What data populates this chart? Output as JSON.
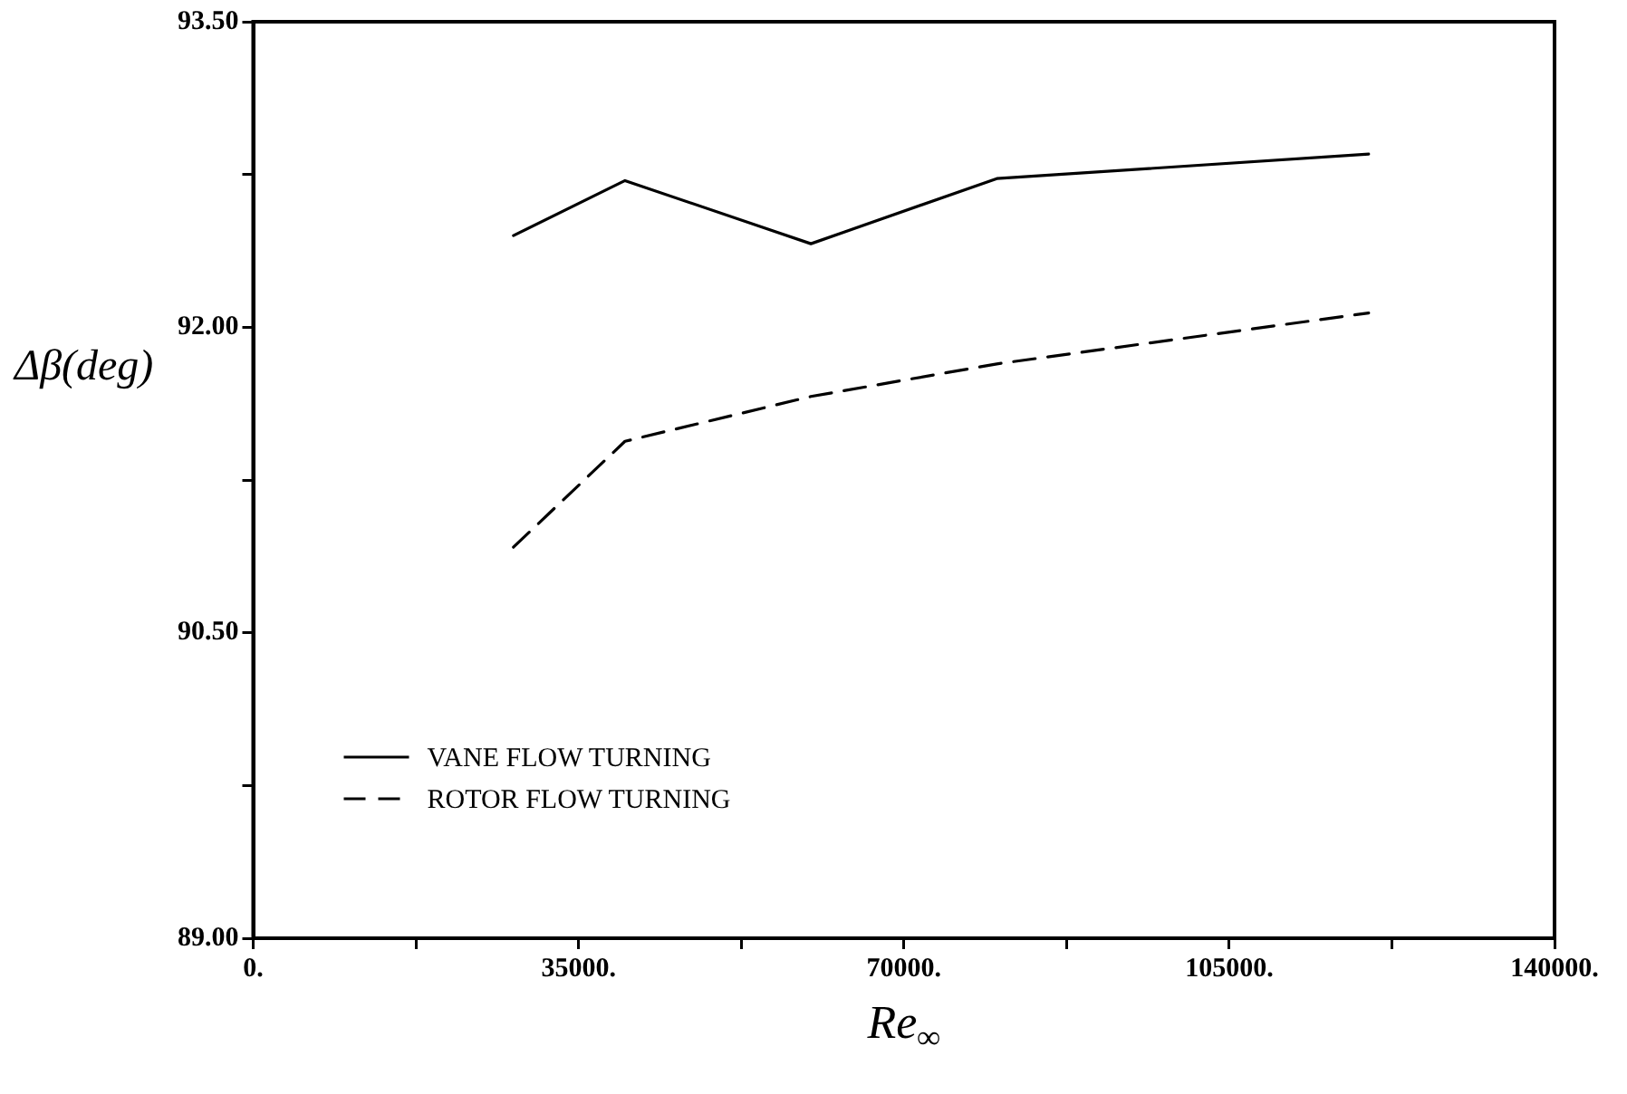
{
  "chart_data": {
    "type": "line",
    "xlabel": "Re$_{∞}$",
    "ylabel": "Δβ(deg)",
    "x": [
      28000,
      40000,
      60000,
      80000,
      120000
    ],
    "series": [
      {
        "name": "VANE FLOW TURNING",
        "color": "#000000",
        "line_style": "solid",
        "values": [
          92.45,
          92.72,
          92.41,
          92.73,
          92.85
        ]
      },
      {
        "name": "ROTOR FLOW TURNING",
        "color": "#000000",
        "line_style": "dashed",
        "values": [
          90.92,
          91.44,
          91.66,
          91.82,
          92.07
        ]
      }
    ],
    "xlim": [
      0,
      140000
    ],
    "xticks": [
      {
        "value": 0,
        "label": "0."
      },
      {
        "value": 17500,
        "label": null
      },
      {
        "value": 35000,
        "label": "35000."
      },
      {
        "value": 52500,
        "label": null
      },
      {
        "value": 70000,
        "label": "70000."
      },
      {
        "value": 87500,
        "label": null
      },
      {
        "value": 105000,
        "label": "105000."
      },
      {
        "value": 122500,
        "label": null
      },
      {
        "value": 140000,
        "label": "140000."
      }
    ],
    "ylim": [
      89,
      93.5
    ],
    "yticks": [
      {
        "value": 89,
        "label": "89.00"
      },
      {
        "value": 89.75,
        "label": null
      },
      {
        "value": 90.5,
        "label": "90.50"
      },
      {
        "value": 91.25,
        "label": null
      },
      {
        "value": 92,
        "label": "92.00"
      },
      {
        "value": 92.75,
        "label": null
      },
      {
        "value": 93.5,
        "label": "93.50"
      }
    ],
    "legend": "bottom left",
    "marker": "none"
  }
}
